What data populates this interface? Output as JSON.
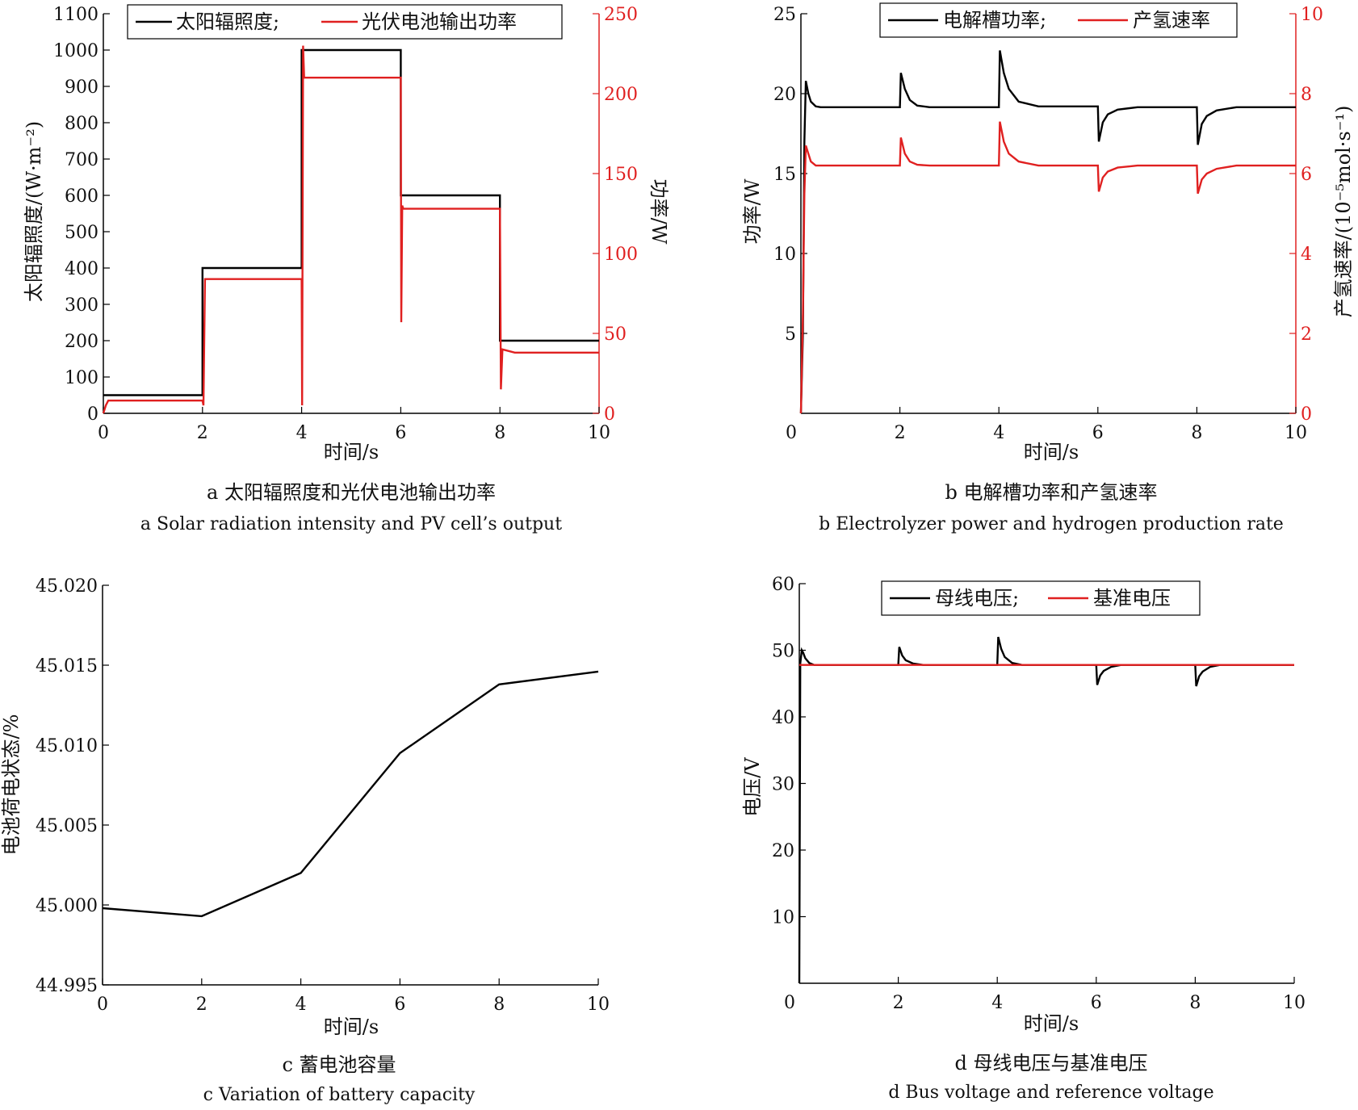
{
  "chart_data": [
    {
      "id": "a",
      "type": "line",
      "caption_zh": "a 太阳辐照度和光伏电池输出功率",
      "caption_en": "a Solar radiation intensity and PV cell’s output",
      "xlabel": "时间/s",
      "ylabel": "太阳辐照度/(W·m⁻²)",
      "y2label": "功率/W",
      "xlim": [
        0,
        10
      ],
      "ylim": [
        0,
        1100
      ],
      "y2lim": [
        0,
        250
      ],
      "xticks": [
        "0",
        "2",
        "4",
        "6",
        "8",
        "10"
      ],
      "yticks": [
        "0",
        "100",
        "200",
        "300",
        "400",
        "500",
        "600",
        "700",
        "800",
        "900",
        "1000",
        "1100"
      ],
      "y2ticks": [
        "0",
        "50",
        "100",
        "150",
        "200",
        "250"
      ],
      "legend": "top-center",
      "series": [
        {
          "name": "太阳辐照度;",
          "axis": "left",
          "color": "#000000",
          "x": [
            0,
            2,
            2,
            4,
            4,
            6,
            6,
            8,
            8,
            10
          ],
          "y": [
            50,
            50,
            400,
            400,
            1000,
            1000,
            600,
            600,
            200,
            200
          ]
        },
        {
          "name": "光伏电池输出功率",
          "axis": "right",
          "color": "#e02020",
          "x": [
            0,
            0.05,
            0.1,
            2,
            2.02,
            2.05,
            4,
            4.01,
            4.03,
            4.05,
            6,
            6.01,
            6.03,
            6.05,
            8,
            8.02,
            8.05,
            8.3,
            10
          ],
          "y": [
            0,
            5,
            8,
            8,
            5,
            84,
            84,
            5,
            230,
            210,
            210,
            57,
            130,
            128,
            128,
            15,
            40,
            38,
            38
          ]
        }
      ]
    },
    {
      "id": "b",
      "type": "line",
      "caption_zh": "b 电解槽功率和产氢速率",
      "caption_en": "b Electrolyzer power and hydrogen production rate",
      "xlabel": "时间/s",
      "ylabel": "功率/W",
      "y2label": "产氢速率/(10⁻⁵mol·s⁻¹)",
      "xlim": [
        0,
        10
      ],
      "ylim": [
        0,
        25
      ],
      "y2lim": [
        0,
        10
      ],
      "xticks": [
        "0",
        "2",
        "4",
        "6",
        "8",
        "10"
      ],
      "yticks": [
        "5",
        "10",
        "15",
        "20",
        "25"
      ],
      "y2ticks": [
        "0",
        "2",
        "4",
        "6",
        "8",
        "10"
      ],
      "legend": "top-center",
      "series": [
        {
          "name": "电解槽功率;",
          "axis": "left",
          "color": "#000000",
          "x": [
            0,
            0.04,
            0.07,
            0.1,
            0.15,
            0.2,
            0.3,
            0.4,
            0.6,
            2,
            2.02,
            2.1,
            2.2,
            2.35,
            2.6,
            4,
            4.02,
            4.1,
            4.2,
            4.4,
            4.8,
            6,
            6.02,
            6.1,
            6.2,
            6.4,
            6.8,
            8,
            8.02,
            8.1,
            8.2,
            8.4,
            8.8,
            10
          ],
          "y": [
            0,
            5,
            17,
            20.8,
            20,
            19.5,
            19.2,
            19.15,
            19.15,
            19.15,
            21.3,
            20.3,
            19.6,
            19.25,
            19.15,
            19.15,
            22.7,
            21.3,
            20.3,
            19.5,
            19.2,
            19.2,
            17,
            18.2,
            18.7,
            19.0,
            19.15,
            19.15,
            16.8,
            18.1,
            18.6,
            18.95,
            19.15,
            19.15
          ]
        },
        {
          "name": "产氢速率",
          "axis": "right",
          "color": "#e02020",
          "x": [
            0,
            0.04,
            0.07,
            0.1,
            0.15,
            0.2,
            0.3,
            0.4,
            0.6,
            2,
            2.02,
            2.1,
            2.2,
            2.35,
            2.6,
            4,
            4.02,
            4.1,
            4.2,
            4.4,
            4.8,
            6,
            6.02,
            6.1,
            6.2,
            6.4,
            6.8,
            8,
            8.02,
            8.1,
            8.2,
            8.4,
            8.8,
            10
          ],
          "y": [
            0,
            2.5,
            5.5,
            6.7,
            6.5,
            6.3,
            6.2,
            6.2,
            6.2,
            6.2,
            6.9,
            6.5,
            6.3,
            6.22,
            6.2,
            6.2,
            7.3,
            6.8,
            6.5,
            6.3,
            6.2,
            6.2,
            5.55,
            5.9,
            6.05,
            6.15,
            6.2,
            6.2,
            5.5,
            5.85,
            6.0,
            6.12,
            6.2,
            6.2
          ]
        }
      ]
    },
    {
      "id": "c",
      "type": "line",
      "caption_zh": "c 蓄电池容量",
      "caption_en": "c Variation of battery capacity",
      "xlabel": "时间/s",
      "ylabel": "电池荷电状态/%",
      "xlim": [
        0,
        10
      ],
      "ylim": [
        44.995,
        45.02
      ],
      "xticks": [
        "0",
        "2",
        "4",
        "6",
        "8",
        "10"
      ],
      "yticks": [
        "44.995",
        "45.000",
        "45.005",
        "45.010",
        "45.015",
        "45.020"
      ],
      "series": [
        {
          "color": "#000000",
          "x": [
            0,
            2,
            4,
            6,
            8,
            10
          ],
          "y": [
            44.9998,
            44.9993,
            45.002,
            45.0095,
            45.0138,
            45.0146
          ]
        }
      ]
    },
    {
      "id": "d",
      "type": "line",
      "caption_zh": "d 母线电压与基准电压",
      "caption_en": "d Bus voltage and reference voltage",
      "xlabel": "时间/s",
      "ylabel": "电压/V",
      "xlim": [
        0,
        10
      ],
      "ylim": [
        0,
        60
      ],
      "xticks": [
        "0",
        "2",
        "4",
        "6",
        "8",
        "10"
      ],
      "yticks": [
        "10",
        "20",
        "30",
        "40",
        "50",
        "60"
      ],
      "legend": "top-center",
      "series": [
        {
          "name": "母线电压;",
          "axis": "left",
          "color": "#000000",
          "x": [
            0,
            0.02,
            0.05,
            0.08,
            0.12,
            0.2,
            0.3,
            0.5,
            2,
            2.02,
            2.08,
            2.15,
            2.3,
            2.5,
            4,
            4.02,
            4.08,
            4.15,
            4.3,
            4.5,
            6,
            6.02,
            6.08,
            6.15,
            6.3,
            6.5,
            8,
            8.02,
            8.08,
            8.15,
            8.3,
            8.5,
            10
          ],
          "y": [
            0,
            48,
            50,
            49.6,
            48.8,
            48.1,
            47.8,
            47.8,
            47.8,
            50.5,
            49.2,
            48.5,
            48.0,
            47.8,
            47.8,
            52.0,
            50.2,
            49.0,
            48.1,
            47.8,
            47.8,
            44.8,
            46.2,
            46.9,
            47.5,
            47.8,
            47.8,
            44.6,
            46.1,
            46.8,
            47.5,
            47.8,
            47.8
          ]
        },
        {
          "name": "基准电压",
          "axis": "left",
          "color": "#e02020",
          "x": [
            0,
            10
          ],
          "y": [
            47.8,
            47.8
          ]
        }
      ]
    }
  ]
}
